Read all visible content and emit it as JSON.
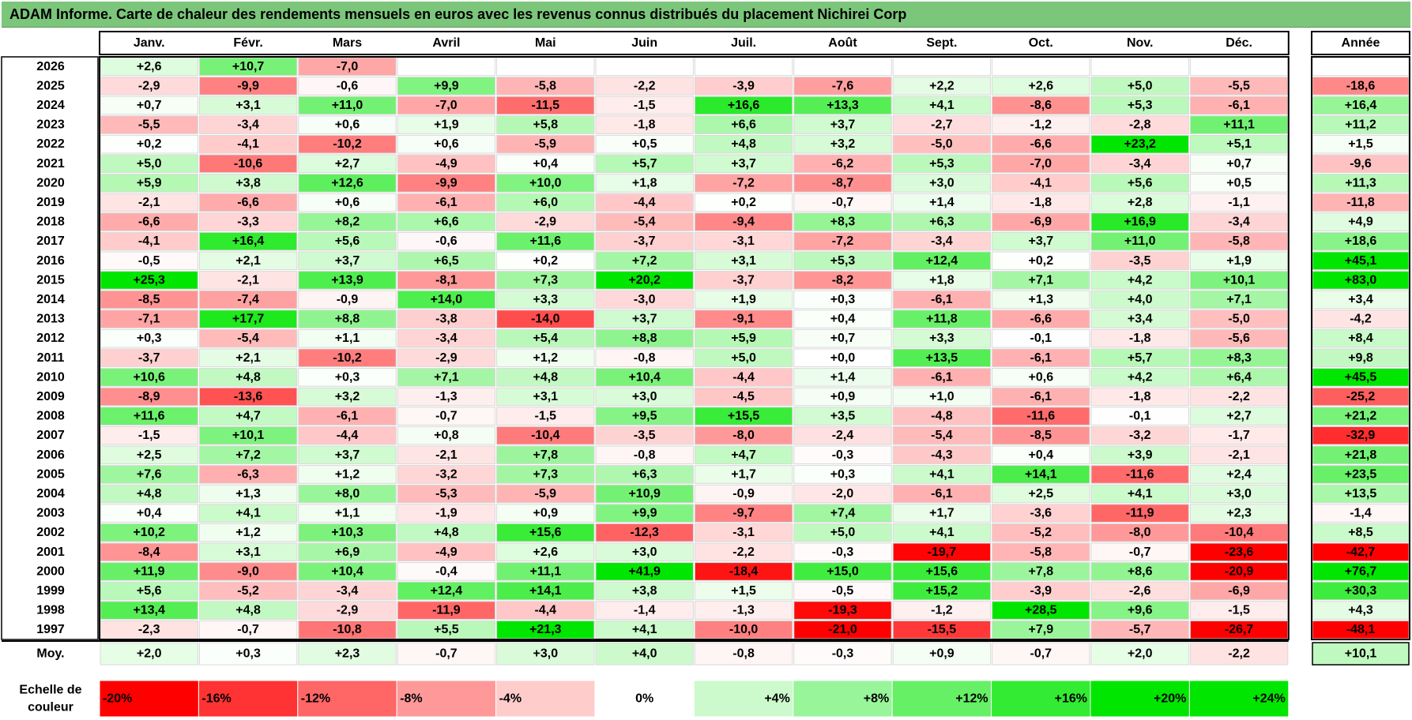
{
  "title": "ADAM Informe. Carte de chaleur des rendements mensuels en euros avec les revenus connus distribués du placement Nichirei Corp",
  "chart_data": {
    "type": "heatmap",
    "columns": [
      "Janv.",
      "Févr.",
      "Mars",
      "Avril",
      "Mai",
      "Juin",
      "Juil.",
      "Août",
      "Sept.",
      "Oct.",
      "Nov.",
      "Déc."
    ],
    "year_column_label": "Année",
    "average_label": "Moy.",
    "scale_label": "Echelle de couleur",
    "rows": [
      {
        "year": "2026",
        "months": [
          "+2,6",
          "+10,7",
          "-7,0",
          "",
          "",
          "",
          "",
          "",
          "",
          "",
          "",
          ""
        ],
        "annual": ""
      },
      {
        "year": "2025",
        "months": [
          "-2,9",
          "-9,9",
          "-0,6",
          "+9,9",
          "-5,8",
          "-2,2",
          "-3,9",
          "-7,6",
          "+2,2",
          "+2,6",
          "+5,0",
          "-5,5"
        ],
        "annual": "-18,6"
      },
      {
        "year": "2024",
        "months": [
          "+0,7",
          "+3,1",
          "+11,0",
          "-7,0",
          "-11,5",
          "-1,5",
          "+16,6",
          "+13,3",
          "+4,1",
          "-8,6",
          "+5,3",
          "-6,1"
        ],
        "annual": "+16,4"
      },
      {
        "year": "2023",
        "months": [
          "-5,5",
          "-3,4",
          "+0,6",
          "+1,9",
          "+5,8",
          "-1,8",
          "+6,6",
          "+3,7",
          "-2,7",
          "-1,2",
          "-2,8",
          "+11,1"
        ],
        "annual": "+11,2"
      },
      {
        "year": "2022",
        "months": [
          "+0,2",
          "-4,1",
          "-10,2",
          "+0,6",
          "-5,9",
          "+0,5",
          "+4,8",
          "+3,2",
          "-5,0",
          "-6,6",
          "+23,2",
          "+5,1"
        ],
        "annual": "+1,5"
      },
      {
        "year": "2021",
        "months": [
          "+5,0",
          "-10,6",
          "+2,7",
          "-4,9",
          "+0,4",
          "+5,7",
          "+3,7",
          "-6,2",
          "+5,3",
          "-7,0",
          "-3,4",
          "+0,7"
        ],
        "annual": "-9,6"
      },
      {
        "year": "2020",
        "months": [
          "+5,9",
          "+3,8",
          "+12,6",
          "-9,9",
          "+10,0",
          "+1,8",
          "-7,2",
          "-8,7",
          "+3,0",
          "-4,1",
          "+5,6",
          "+0,5"
        ],
        "annual": "+11,3"
      },
      {
        "year": "2019",
        "months": [
          "-2,1",
          "-6,6",
          "+0,6",
          "-6,1",
          "+6,0",
          "-4,4",
          "+0,2",
          "-0,7",
          "+1,4",
          "-1,8",
          "+2,8",
          "-1,1"
        ],
        "annual": "-11,8"
      },
      {
        "year": "2018",
        "months": [
          "-6,6",
          "-3,3",
          "+8,2",
          "+6,6",
          "-2,9",
          "-5,4",
          "-9,4",
          "+8,3",
          "+6,3",
          "-6,9",
          "+16,9",
          "-3,4"
        ],
        "annual": "+4,9"
      },
      {
        "year": "2017",
        "months": [
          "-4,1",
          "+16,4",
          "+5,6",
          "-0,6",
          "+11,6",
          "-3,7",
          "-3,1",
          "-7,2",
          "-3,4",
          "+3,7",
          "+11,0",
          "-5,8"
        ],
        "annual": "+18,6"
      },
      {
        "year": "2016",
        "months": [
          "-0,5",
          "+2,1",
          "+3,7",
          "+6,5",
          "+0,2",
          "+7,2",
          "+3,1",
          "+5,3",
          "+12,4",
          "+0,2",
          "-3,5",
          "+1,9"
        ],
        "annual": "+45,1"
      },
      {
        "year": "2015",
        "months": [
          "+25,3",
          "-2,1",
          "+13,9",
          "-8,1",
          "+7,3",
          "+20,2",
          "-3,7",
          "-8,2",
          "+1,8",
          "+7,1",
          "+4,2",
          "+10,1"
        ],
        "annual": "+83,0"
      },
      {
        "year": "2014",
        "months": [
          "-8,5",
          "-7,4",
          "-0,9",
          "+14,0",
          "+3,3",
          "-3,0",
          "+1,9",
          "+0,3",
          "-6,1",
          "+1,3",
          "+4,0",
          "+7,1"
        ],
        "annual": "+3,4"
      },
      {
        "year": "2013",
        "months": [
          "-7,1",
          "+17,7",
          "+8,8",
          "-3,8",
          "-14,0",
          "+3,7",
          "-9,1",
          "+0,4",
          "+11,8",
          "-6,6",
          "+3,4",
          "-5,0"
        ],
        "annual": "-4,2"
      },
      {
        "year": "2012",
        "months": [
          "+0,3",
          "-5,4",
          "+1,1",
          "-3,4",
          "+5,4",
          "+8,8",
          "+5,9",
          "+0,7",
          "+3,3",
          "-0,1",
          "-1,8",
          "-5,6"
        ],
        "annual": "+8,4"
      },
      {
        "year": "2011",
        "months": [
          "-3,7",
          "+2,1",
          "-10,2",
          "-2,9",
          "+1,2",
          "-0,8",
          "+5,0",
          "+0,0",
          "+13,5",
          "-6,1",
          "+5,7",
          "+8,3"
        ],
        "annual": "+9,8"
      },
      {
        "year": "2010",
        "months": [
          "+10,6",
          "+4,8",
          "+0,3",
          "+7,1",
          "+4,8",
          "+10,4",
          "-4,4",
          "+1,4",
          "-6,1",
          "+0,6",
          "+4,2",
          "+6,4"
        ],
        "annual": "+45,5"
      },
      {
        "year": "2009",
        "months": [
          "-8,9",
          "-13,6",
          "+3,2",
          "-1,3",
          "+3,1",
          "+3,0",
          "-4,5",
          "+0,9",
          "+1,0",
          "-6,1",
          "-1,8",
          "-2,2"
        ],
        "annual": "-25,2"
      },
      {
        "year": "2008",
        "months": [
          "+11,6",
          "+4,7",
          "-6,1",
          "-0,7",
          "-1,5",
          "+9,5",
          "+15,5",
          "+3,5",
          "-4,8",
          "-11,6",
          "-0,1",
          "+2,7"
        ],
        "annual": "+21,2"
      },
      {
        "year": "2007",
        "months": [
          "-1,5",
          "+10,1",
          "-4,4",
          "+0,8",
          "-10,4",
          "-3,5",
          "-8,0",
          "-2,4",
          "-5,4",
          "-8,5",
          "-3,2",
          "-1,7"
        ],
        "annual": "-32,9"
      },
      {
        "year": "2006",
        "months": [
          "+2,5",
          "+7,2",
          "+3,7",
          "-2,1",
          "+7,8",
          "-0,8",
          "+4,7",
          "-0,3",
          "-4,3",
          "+0,4",
          "+3,9",
          "-2,1"
        ],
        "annual": "+21,8"
      },
      {
        "year": "2005",
        "months": [
          "+7,6",
          "-6,3",
          "+1,2",
          "-3,2",
          "+7,3",
          "+6,3",
          "+1,7",
          "+0,3",
          "+4,1",
          "+14,1",
          "-11,6",
          "+2,4"
        ],
        "annual": "+23,5"
      },
      {
        "year": "2004",
        "months": [
          "+4,8",
          "+1,3",
          "+8,0",
          "-5,3",
          "-5,9",
          "+10,9",
          "-0,9",
          "-2,0",
          "-6,1",
          "+2,5",
          "+4,1",
          "+3,0"
        ],
        "annual": "+13,5"
      },
      {
        "year": "2003",
        "months": [
          "+0,4",
          "+4,1",
          "+1,1",
          "-1,9",
          "+0,9",
          "+9,9",
          "-9,7",
          "+7,4",
          "+1,7",
          "-3,6",
          "-11,9",
          "+2,3"
        ],
        "annual": "-1,4"
      },
      {
        "year": "2002",
        "months": [
          "+10,2",
          "+1,2",
          "+10,3",
          "+4,8",
          "+15,6",
          "-12,3",
          "-3,1",
          "+5,0",
          "+4,1",
          "-5,2",
          "-8,0",
          "-10,4"
        ],
        "annual": "+8,5"
      },
      {
        "year": "2001",
        "months": [
          "-8,4",
          "+3,1",
          "+6,9",
          "-4,9",
          "+2,6",
          "+3,0",
          "-2,2",
          "-0,3",
          "-19,7",
          "-5,8",
          "-0,7",
          "-23,6"
        ],
        "annual": "-42,7"
      },
      {
        "year": "2000",
        "months": [
          "+11,9",
          "-9,0",
          "+10,4",
          "-0,4",
          "+11,1",
          "+41,9",
          "-18,4",
          "+15,0",
          "+15,6",
          "+7,8",
          "+8,6",
          "-20,9"
        ],
        "annual": "+76,7"
      },
      {
        "year": "1999",
        "months": [
          "+5,6",
          "-5,2",
          "-3,4",
          "+12,4",
          "+14,1",
          "+3,8",
          "+1,5",
          "-0,5",
          "+15,2",
          "-3,9",
          "-2,6",
          "-6,9"
        ],
        "annual": "+30,3"
      },
      {
        "year": "1998",
        "months": [
          "+13,4",
          "+4,8",
          "-2,9",
          "-11,9",
          "-4,4",
          "-1,4",
          "-1,3",
          "-19,3",
          "-1,2",
          "+28,5",
          "+9,6",
          "-1,5"
        ],
        "annual": "+4,3"
      },
      {
        "year": "1997",
        "months": [
          "-2,3",
          "-0,7",
          "-10,8",
          "+5,5",
          "+21,3",
          "+4,1",
          "-10,0",
          "-21,0",
          "-15,5",
          "+7,9",
          "-5,7",
          "-26,7"
        ],
        "annual": "-48,1"
      }
    ],
    "averages": {
      "months": [
        "+2,0",
        "+0,3",
        "+2,3",
        "-0,7",
        "+3,0",
        "+4,0",
        "-0,8",
        "-0,3",
        "+0,9",
        "-0,7",
        "+2,0",
        "-2,2"
      ],
      "annual": "+10,1"
    },
    "scale": [
      "-20%",
      "-16%",
      "-12%",
      "-8%",
      "-4%",
      "0%",
      "+4%",
      "+8%",
      "+12%",
      "+16%",
      "+20%",
      "+24%"
    ],
    "scale_values": [
      -20,
      -16,
      -12,
      -8,
      -4,
      0,
      4,
      8,
      12,
      16,
      20,
      24
    ],
    "colors": {
      "negative_max": "#ff0000",
      "neutral": "#ffffff",
      "positive_max": "#00e600",
      "title_bar": "#7bc67b",
      "border": "#000000"
    }
  }
}
